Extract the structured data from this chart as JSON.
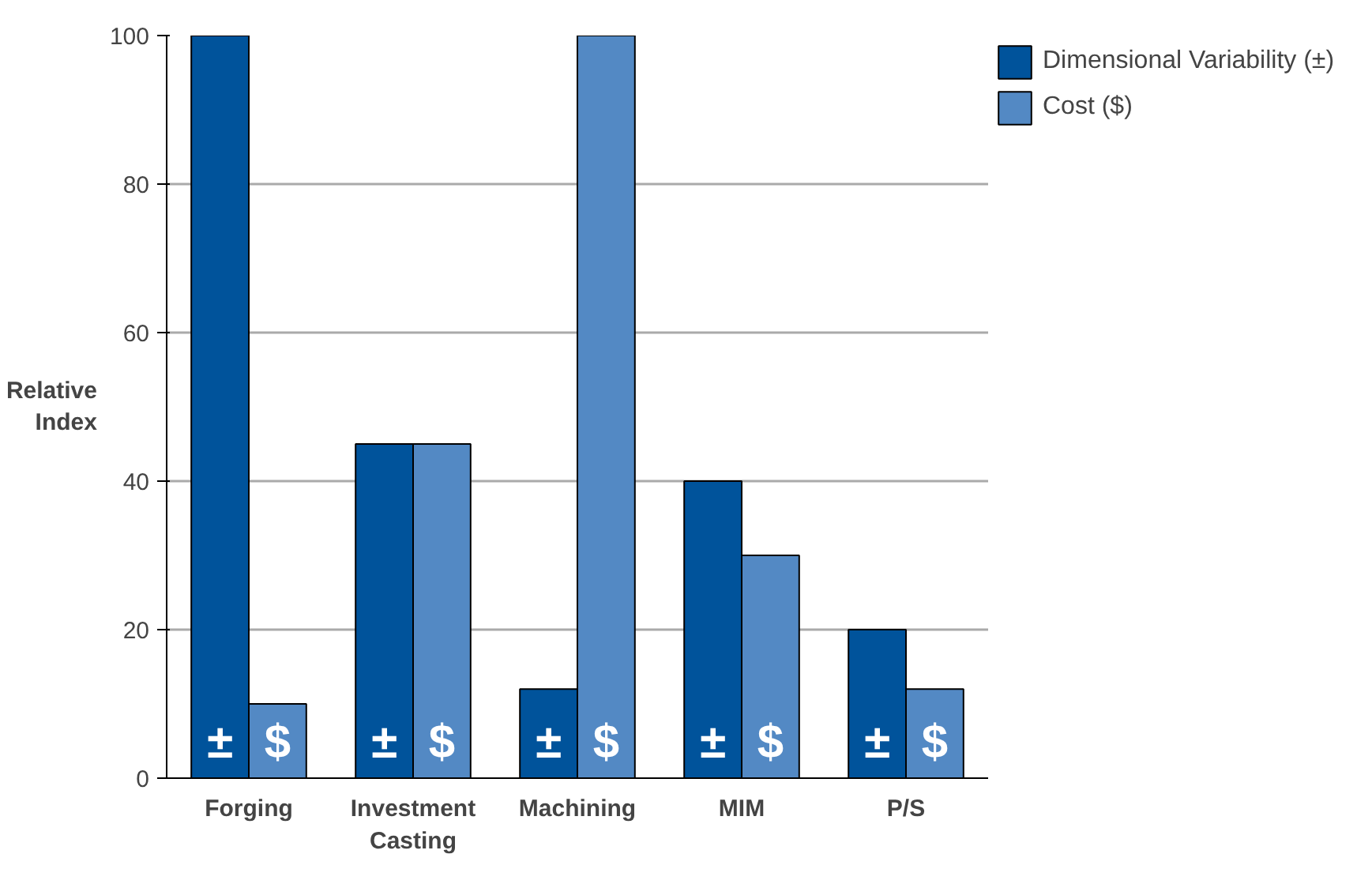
{
  "chart_data": {
    "type": "bar",
    "ylabel": "Relative Index",
    "categories": [
      "Forging",
      "Investment Casting",
      "Machining",
      "MIM",
      "P/S"
    ],
    "series": [
      {
        "name": "Dimensional Variability (±)",
        "color": "#00539b",
        "values": [
          100,
          45,
          12,
          40,
          20
        ],
        "value_labels": [
          "±",
          "±",
          "±",
          "±",
          "±"
        ]
      },
      {
        "name": "Cost ($)",
        "color": "#5389c4",
        "values": [
          10,
          45,
          100,
          30,
          12
        ],
        "value_labels": [
          "$",
          "$",
          "$",
          "$",
          "$"
        ]
      }
    ],
    "ylim": [
      0,
      100
    ],
    "yticks": [
      0,
      20,
      40,
      60,
      80,
      100
    ],
    "grid": "y",
    "legend": "top right"
  }
}
